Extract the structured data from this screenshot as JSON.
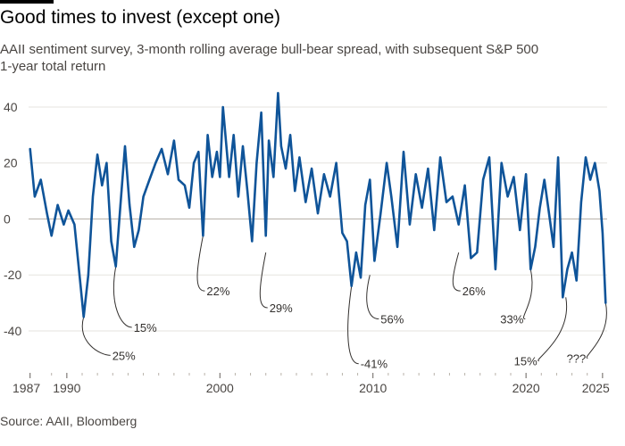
{
  "title": "Good times to invest (except one)",
  "subtitle": "AAII sentiment survey, 3-month rolling average bull-bear spread, with subsequent S&P 500 1-year total return",
  "source": "Source: AAII, Bloomberg",
  "colors": {
    "line": "#0f5499",
    "grid": "#e6e3df",
    "zero": "#b8b2aa",
    "annotation": "#33302e"
  },
  "chart_data": {
    "type": "line",
    "title": "Good times to invest (except one)",
    "xlabel": "",
    "ylabel": "",
    "xlim": [
      1987.5,
      2025.3
    ],
    "ylim": [
      -55,
      47
    ],
    "yticks": [
      40,
      20,
      0,
      -20,
      -40
    ],
    "ytick_labels": [
      "40",
      "20",
      "0",
      "-20",
      "-40"
    ],
    "xticks": [
      1987.6,
      1990,
      2000,
      2010,
      2020,
      2025
    ],
    "xtick_labels": [
      "1987",
      "1990",
      "2000",
      "2010",
      "2020",
      "2025"
    ],
    "grid": "horizontal",
    "series": [
      {
        "x": [
          1987.6,
          1987.9,
          1988.3,
          1988.7,
          1989.0,
          1989.4,
          1989.8,
          1990.1,
          1990.5,
          1990.9,
          1991.1,
          1991.4,
          1991.7,
          1992.0,
          1992.3,
          1992.6,
          1992.9,
          1993.2,
          1993.5,
          1993.8,
          1994.1,
          1994.4,
          1994.7,
          1995.0,
          1995.4,
          1995.8,
          1996.2,
          1996.6,
          1997.0,
          1997.3,
          1997.7,
          1998.0,
          1998.3,
          1998.6,
          1998.9,
          1999.2,
          1999.5,
          1999.8,
          2000.0,
          2000.2,
          2000.6,
          2000.9,
          2001.2,
          2001.5,
          2001.8,
          2002.1,
          2002.4,
          2002.7,
          2003.0,
          2003.2,
          2003.5,
          2003.8,
          2004.0,
          2004.3,
          2004.6,
          2004.9,
          2005.2,
          2005.6,
          2006.0,
          2006.4,
          2006.8,
          2007.2,
          2007.6,
          2008.0,
          2008.3,
          2008.6,
          2008.9,
          2009.2,
          2009.5,
          2009.8,
          2010.1,
          2010.5,
          2010.9,
          2011.2,
          2011.6,
          2012.0,
          2012.4,
          2012.8,
          2013.2,
          2013.6,
          2014.0,
          2014.4,
          2014.8,
          2015.2,
          2015.6,
          2016.0,
          2016.4,
          2016.8,
          2017.2,
          2017.6,
          2018.0,
          2018.4,
          2018.8,
          2019.2,
          2019.6,
          2020.0,
          2020.3,
          2020.6,
          2020.9,
          2021.2,
          2021.5,
          2021.8,
          2022.1,
          2022.4,
          2022.7,
          2023.0,
          2023.3,
          2023.6,
          2023.9,
          2024.2,
          2024.5,
          2024.8,
          2025.0,
          2025.2
        ],
        "values": [
          25,
          8,
          14,
          2,
          -6,
          5,
          -2,
          3,
          -2,
          -24,
          -35,
          -20,
          8,
          23,
          12,
          20,
          -8,
          -17,
          5,
          26,
          5,
          -10,
          -4,
          8,
          14,
          20,
          25,
          16,
          28,
          14,
          12,
          4,
          20,
          24,
          -6,
          30,
          15,
          24,
          15,
          40,
          15,
          30,
          8,
          26,
          10,
          -8,
          20,
          38,
          -6,
          28,
          15,
          45,
          26,
          18,
          30,
          10,
          22,
          6,
          18,
          2,
          16,
          8,
          20,
          -5,
          -8,
          -24,
          -12,
          -21,
          5,
          14,
          -15,
          2,
          20,
          8,
          -10,
          24,
          -2,
          16,
          4,
          18,
          -4,
          22,
          6,
          8,
          -2,
          12,
          -14,
          -12,
          14,
          22,
          -18,
          20,
          8,
          15,
          -4,
          16,
          -18,
          -10,
          4,
          14,
          2,
          -10,
          22,
          -28,
          -18,
          -12,
          -22,
          6,
          22,
          14,
          20,
          10,
          -5,
          -30
        ]
      }
    ],
    "annotations": [
      {
        "x": 1991.1,
        "y": -35,
        "label": "25%"
      },
      {
        "x": 1993.2,
        "y": -17,
        "label": "15%"
      },
      {
        "x": 1998.9,
        "y": -6,
        "label": "22%"
      },
      {
        "x": 2003.0,
        "y": -12,
        "label": "29%"
      },
      {
        "x": 2008.6,
        "y": -24,
        "label": "-41%"
      },
      {
        "x": 2009.8,
        "y": -20,
        "label": "56%"
      },
      {
        "x": 2015.6,
        "y": -12,
        "label": "26%"
      },
      {
        "x": 2020.3,
        "y": -18,
        "label": "33%"
      },
      {
        "x": 2022.6,
        "y": -28,
        "label": "15%"
      },
      {
        "x": 2025.2,
        "y": -30,
        "label": "???"
      }
    ]
  }
}
